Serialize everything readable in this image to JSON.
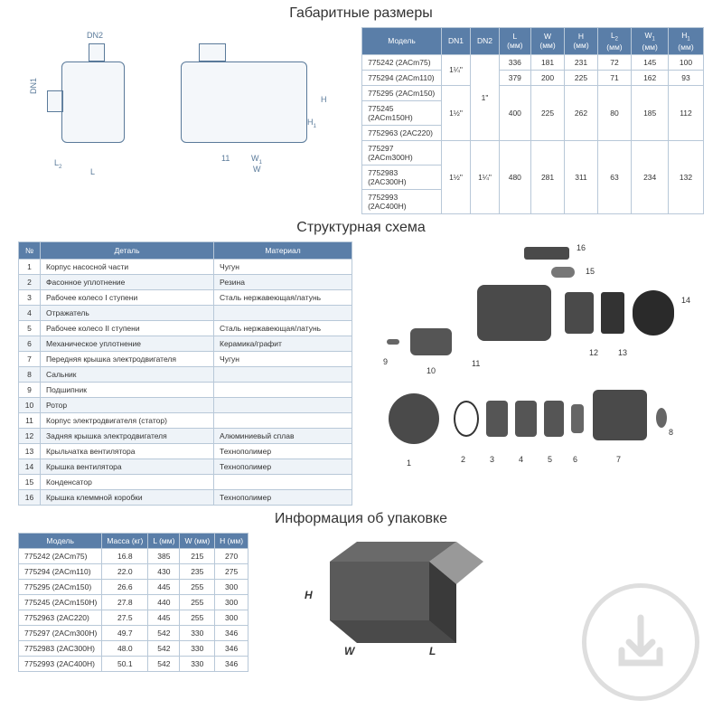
{
  "colors": {
    "header_bg": "#5a7ea8",
    "header_text": "#ffffff",
    "border": "#b8c8d8",
    "row_alt": "#eef3f8",
    "drawing_stroke": "#5a7a9a",
    "part_fill": "#4a4a4a"
  },
  "section1": {
    "title": "Габаритные размеры",
    "diagram_labels": {
      "dn1": "DN1",
      "dn2": "DN2",
      "L": "L",
      "L2": "L₂",
      "W": "W",
      "W1": "W₁",
      "H": "H",
      "H1": "H₁",
      "eleven": "11"
    },
    "table": {
      "headers": [
        "Модель",
        "DN1",
        "DN2",
        "L (мм)",
        "W (мм)",
        "H (мм)",
        "L₂ (мм)",
        "W₁ (мм)",
        "H₁ (мм)"
      ],
      "rows": [
        {
          "model": "775242 (2ACm75)",
          "dn1": "1¼\"",
          "dn2": "1\"",
          "L": "336",
          "W": "181",
          "H": "231",
          "L2": "72",
          "W1": "145",
          "H1": "100"
        },
        {
          "model": "775294 (2ACm110)",
          "dn1": "",
          "dn2": "",
          "L": "379",
          "W": "200",
          "H": "225",
          "L2": "71",
          "W1": "162",
          "H1": "93"
        },
        {
          "model": "775295 (2ACm150)",
          "dn1": "1½\"",
          "dn2": "",
          "L": "",
          "W": "",
          "H": "",
          "L2": "",
          "W1": "",
          "H1": ""
        },
        {
          "model": "775245 (2ACm150H)",
          "dn1": "",
          "dn2": "",
          "L": "400",
          "W": "225",
          "H": "262",
          "L2": "80",
          "W1": "185",
          "H1": "112"
        },
        {
          "model": "7752963 (2AC220)",
          "dn1": "",
          "dn2": "",
          "L": "",
          "W": "",
          "H": "",
          "L2": "",
          "W1": "",
          "H1": ""
        },
        {
          "model": "775297 (2ACm300H)",
          "dn1": "",
          "dn2": "",
          "L": "",
          "W": "",
          "H": "",
          "L2": "",
          "W1": "",
          "H1": ""
        },
        {
          "model": "7752983 (2AC300H)",
          "dn1": "1½\"",
          "dn2": "1¼\"",
          "L": "480",
          "W": "281",
          "H": "311",
          "L2": "63",
          "W1": "234",
          "H1": "132"
        },
        {
          "model": "7752993 (2AC400H)",
          "dn1": "",
          "dn2": "",
          "L": "",
          "W": "",
          "H": "",
          "L2": "",
          "W1": "",
          "H1": ""
        }
      ]
    }
  },
  "section2": {
    "title": "Структурная схема",
    "table": {
      "headers": [
        "№",
        "Деталь",
        "Материал"
      ],
      "rows": [
        [
          "1",
          "Корпус насосной части",
          "Чугун"
        ],
        [
          "2",
          "Фасонное уплотнение",
          "Резина"
        ],
        [
          "3",
          "Рабочее колесо I ступени",
          "Сталь нержавеющая/латунь"
        ],
        [
          "4",
          "Отражатель",
          ""
        ],
        [
          "5",
          "Рабочее колесо II ступени",
          "Сталь нержавеющая/латунь"
        ],
        [
          "6",
          "Механическое уплотнение",
          "Керамика/графит"
        ],
        [
          "7",
          "Передняя крышка электродвигателя",
          "Чугун"
        ],
        [
          "8",
          "Сальник",
          ""
        ],
        [
          "9",
          "Подшипник",
          ""
        ],
        [
          "10",
          "Ротор",
          ""
        ],
        [
          "11",
          "Корпус электродвигателя (статор)",
          ""
        ],
        [
          "12",
          "Задняя крышка электродвигателя",
          "Алюминиевый сплав"
        ],
        [
          "13",
          "Крыльчатка вентилятора",
          "Технополимер"
        ],
        [
          "14",
          "Крышка вентилятора",
          "Технополимер"
        ],
        [
          "15",
          "Конденсатор",
          ""
        ],
        [
          "16",
          "Крышка клеммной коробки",
          "Технополимер"
        ]
      ]
    },
    "part_numbers": [
      "1",
      "2",
      "3",
      "4",
      "5",
      "6",
      "7",
      "8",
      "9",
      "10",
      "11",
      "12",
      "13",
      "14",
      "15",
      "16"
    ]
  },
  "section3": {
    "title": "Информация об упаковке",
    "table": {
      "headers": [
        "Модель",
        "Масса (кг)",
        "L (мм)",
        "W (мм)",
        "H (мм)"
      ],
      "rows": [
        [
          "775242 (2ACm75)",
          "16.8",
          "385",
          "215",
          "270"
        ],
        [
          "775294 (2ACm110)",
          "22.0",
          "430",
          "235",
          "275"
        ],
        [
          "775295 (2ACm150)",
          "26.6",
          "445",
          "255",
          "300"
        ],
        [
          "775245 (2ACm150H)",
          "27.8",
          "440",
          "255",
          "300"
        ],
        [
          "7752963 (2AC220)",
          "27.5",
          "445",
          "255",
          "300"
        ],
        [
          "775297 (2ACm300H)",
          "49.7",
          "542",
          "330",
          "346"
        ],
        [
          "7752983 (2AC300H)",
          "48.0",
          "542",
          "330",
          "346"
        ],
        [
          "7752993 (2AC400H)",
          "50.1",
          "542",
          "330",
          "346"
        ]
      ]
    },
    "box_labels": {
      "H": "H",
      "W": "W",
      "L": "L"
    }
  }
}
